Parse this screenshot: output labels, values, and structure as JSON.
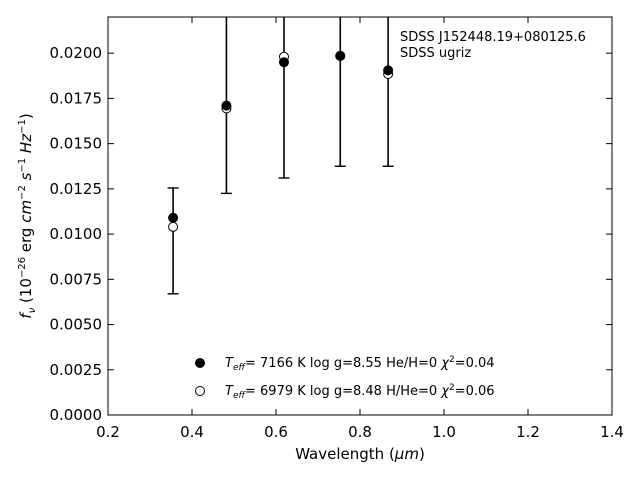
{
  "chart_data": {
    "type": "scatter",
    "xlabel_prefix": "Wavelength (",
    "xlabel_unit": "μm",
    "xlabel_suffix": ")",
    "ylabel_prefix": "f",
    "ylabel_sub": "ν",
    "ylabel_rest1": " (10",
    "ylabel_exp1": "−26",
    "ylabel_rest2": " erg ",
    "ylabel_cm": "cm",
    "ylabel_exp2": "−2",
    "ylabel_s": " s",
    "ylabel_exp3": "−1",
    "ylabel_hz": " Hz",
    "ylabel_exp4": "−1",
    "ylabel_close": ")",
    "xlim": [
      0.2,
      1.4
    ],
    "ylim": [
      0.0,
      0.022
    ],
    "xticks": [
      0.2,
      0.4,
      0.6,
      0.8,
      1.0,
      1.2,
      1.4
    ],
    "xtick_labels": [
      "0.2",
      "0.4",
      "0.6",
      "0.8",
      "1.0",
      "1.2",
      "1.4"
    ],
    "yticks": [
      0.0,
      0.0025,
      0.005,
      0.0075,
      0.01,
      0.0125,
      0.015,
      0.0175,
      0.02
    ],
    "ytick_labels": [
      "0.0000",
      "0.0025",
      "0.0050",
      "0.0075",
      "0.0100",
      "0.0125",
      "0.0150",
      "0.0175",
      "0.0200"
    ],
    "observed": {
      "x": [
        0.355,
        0.482,
        0.619,
        0.753,
        0.867
      ],
      "y": [
        0.0104,
        0.01695,
        0.0198,
        0.01985,
        0.01885
      ],
      "err_low": [
        0.0067,
        0.01225,
        0.0131,
        0.01375,
        0.01375
      ],
      "err_high": [
        0.01255,
        0.022,
        0.022,
        0.022,
        0.022
      ],
      "caps_low": [
        true,
        true,
        true,
        true,
        true
      ],
      "caps_high": [
        true,
        false,
        false,
        false,
        false
      ]
    },
    "series": [
      {
        "marker": "filled",
        "color": "#000000",
        "x": [
          0.355,
          0.482,
          0.619,
          0.753,
          0.867
        ],
        "y": [
          0.0109,
          0.0171,
          0.0195,
          0.01985,
          0.01905
        ],
        "teff_label": "T",
        "teff_sub": "eff",
        "rest": "=  7166 K  log g=8.55  He/H=0  ",
        "chi": "χ",
        "chi_exp": "2",
        "chi_val": "=0.04"
      },
      {
        "marker": "open",
        "color": "#000000",
        "x": [
          0.355,
          0.482,
          0.619,
          0.753,
          0.867
        ],
        "y": [
          0.0104,
          0.01695,
          0.0198,
          0.01985,
          0.01885
        ],
        "teff_label": "T",
        "teff_sub": "eff",
        "rest": "=  6979 K  log g=8.48  H/He=0  ",
        "chi": "χ",
        "chi_exp": "2",
        "chi_val": "=0.06"
      }
    ],
    "annotation": {
      "line1": "SDSS J152448.19+080125.6",
      "line2": "SDSS ugriz"
    },
    "legend_position": "lower-center",
    "grid": false
  }
}
